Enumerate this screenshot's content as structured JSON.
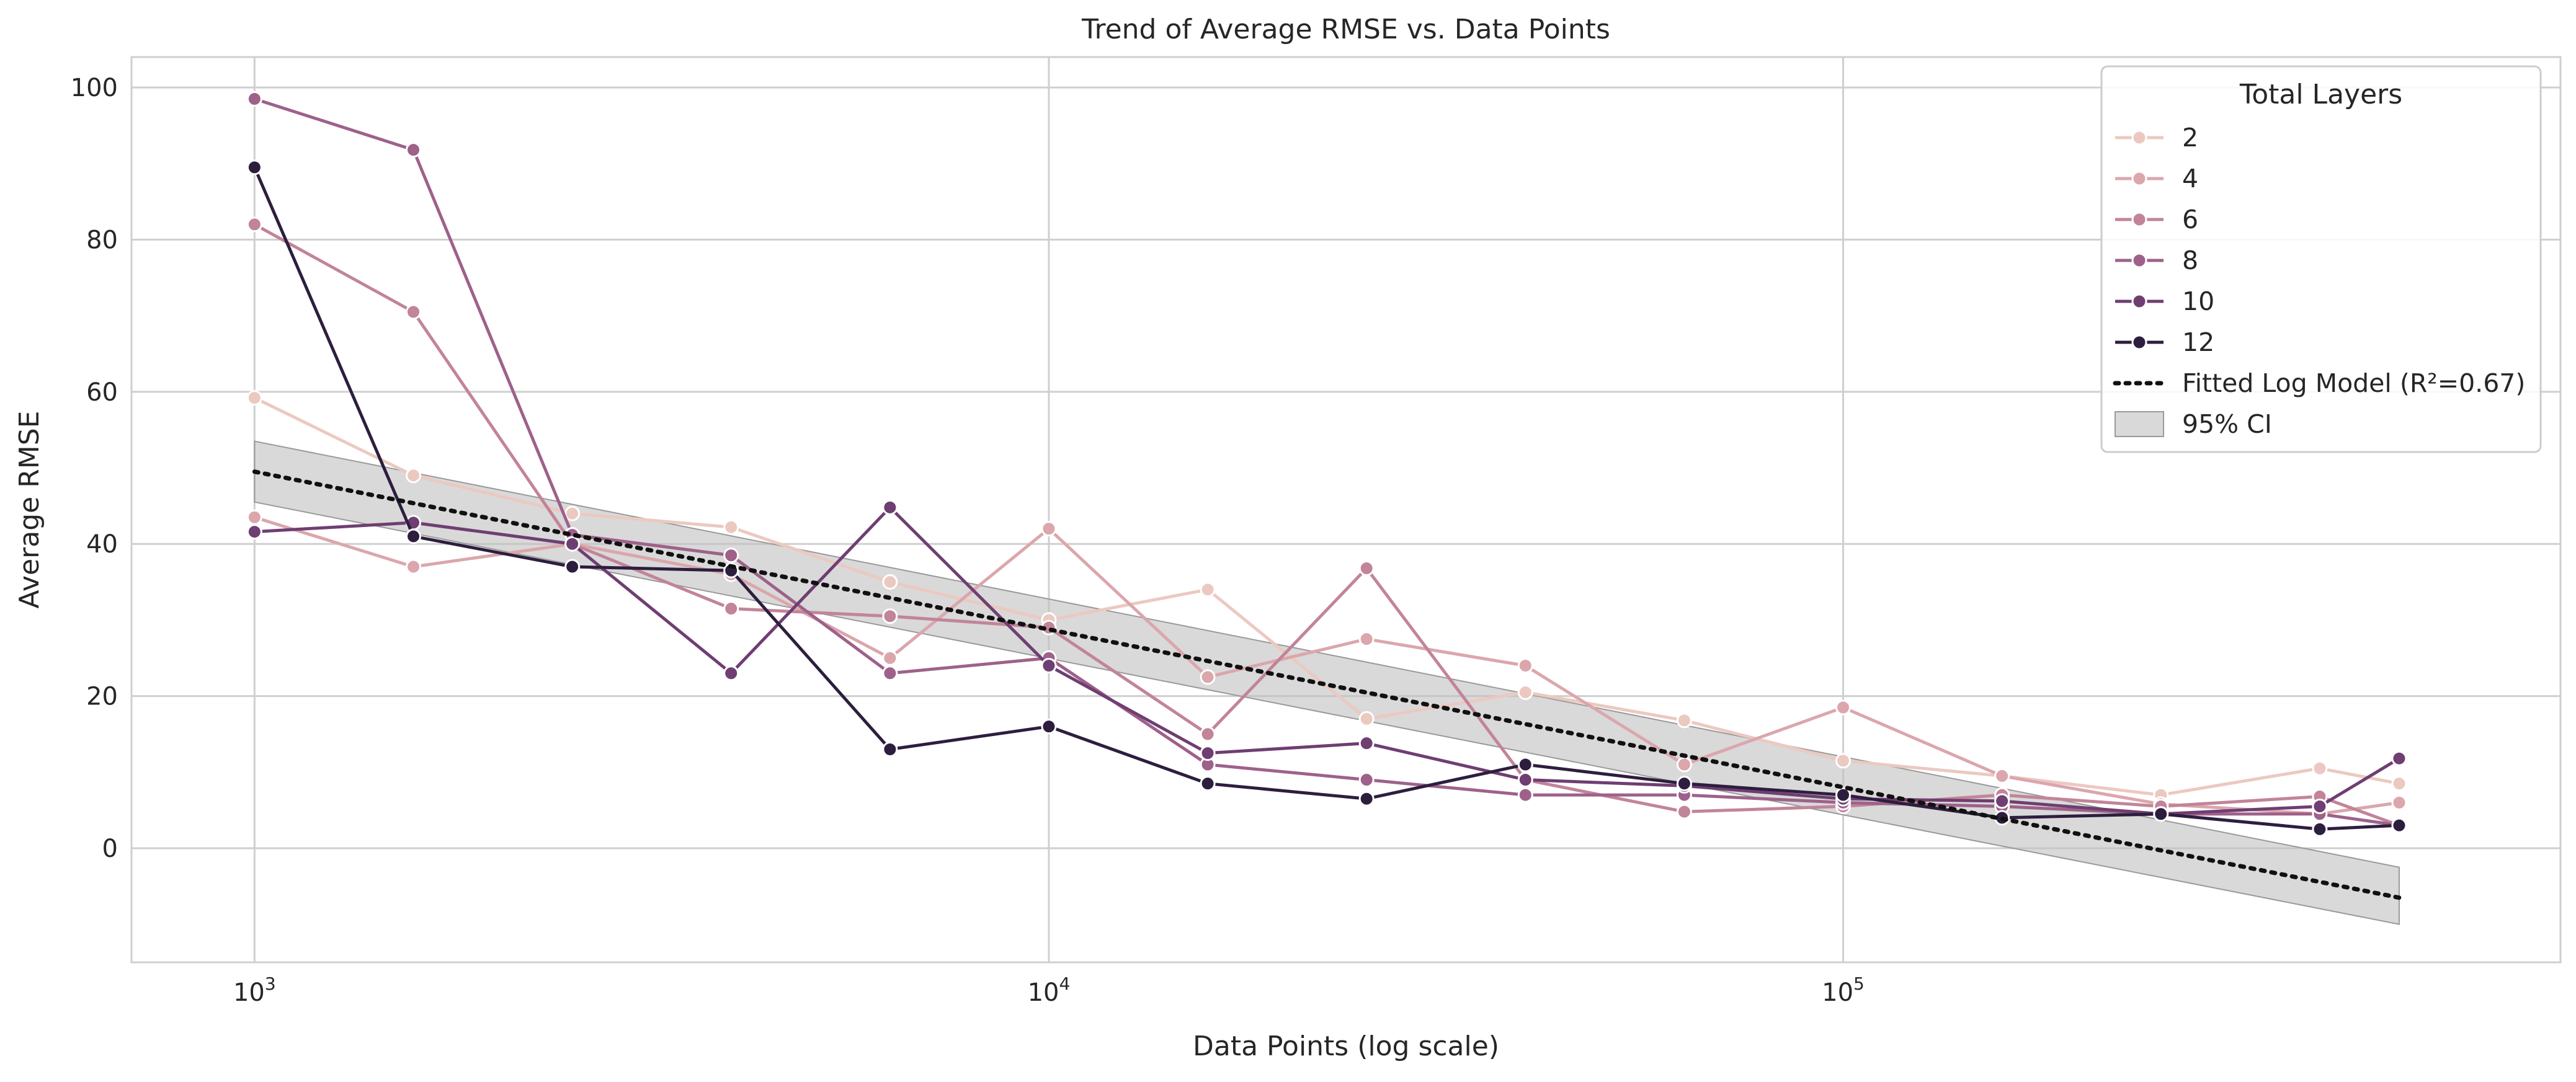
{
  "chart_data": {
    "type": "line",
    "title": "Trend of Average RMSE vs. Data Points",
    "xlabel": "Data Points (log scale)",
    "ylabel": "Average RMSE",
    "x_scale": "log",
    "xlim": [
      700,
      800000
    ],
    "ylim": [
      -15,
      104
    ],
    "x_ticks": [
      1000,
      10000,
      100000
    ],
    "x_tick_labels": [
      {
        "base": "10",
        "exp": "3"
      },
      {
        "base": "10",
        "exp": "4"
      },
      {
        "base": "10",
        "exp": "5"
      }
    ],
    "y_ticks": [
      0,
      20,
      40,
      60,
      80,
      100
    ],
    "y_tick_labels": [
      "0",
      "20",
      "40",
      "60",
      "80",
      "100"
    ],
    "grid": true,
    "legend": {
      "title": "Total Layers",
      "placement": "top-right"
    },
    "x": [
      1000,
      1585,
      2512,
      3981,
      6310,
      10000,
      15849,
      25119,
      39811,
      63096,
      100000,
      158489,
      251189,
      398107,
      501187
    ],
    "series": [
      {
        "name": "2",
        "color": "#ebc9c1",
        "values": [
          59.2,
          49,
          44,
          42.2,
          35,
          30,
          34,
          17,
          20.5,
          16.8,
          11.5,
          9.5,
          7,
          10.5,
          8.5
        ]
      },
      {
        "name": "4",
        "color": "#dba6ac",
        "values": [
          43.5,
          37,
          40,
          36,
          25,
          42,
          22.5,
          27.5,
          24,
          11,
          18.5,
          9.5,
          5.8,
          4.5,
          6
        ]
      },
      {
        "name": "6",
        "color": "#c28498",
        "values": [
          82,
          70.5,
          40,
          31.5,
          30.5,
          29,
          15,
          36.8,
          9,
          4.8,
          5.5,
          7,
          5.5,
          6.8,
          3
        ]
      },
      {
        "name": "8",
        "color": "#9e6189",
        "values": [
          98.5,
          91.8,
          41.2,
          38.5,
          23,
          25,
          11,
          9,
          7,
          7,
          6,
          5.5,
          4.5,
          4.5,
          3
        ]
      },
      {
        "name": "10",
        "color": "#6f3e72",
        "values": [
          41.6,
          42.8,
          40,
          23,
          44.8,
          24,
          12.5,
          13.8,
          9,
          8.2,
          6.5,
          6.2,
          4.5,
          5.5,
          11.8
        ]
      },
      {
        "name": "12",
        "color": "#2d1e3e",
        "values": [
          89.5,
          41,
          37,
          36.5,
          13,
          16,
          8.5,
          6.5,
          11,
          8.5,
          7,
          4,
          4.5,
          2.5,
          3
        ]
      }
    ],
    "fit": {
      "name": "Fitted Log Model (R²=0.67)",
      "color": "#111111",
      "x": [
        1000,
        501187
      ],
      "values": [
        49.5,
        -6.5
      ]
    },
    "ci": {
      "name": "95% CI",
      "color": "#bfbfbf",
      "x": [
        1000,
        501187
      ],
      "upper": [
        53.5,
        -2.5
      ],
      "lower": [
        45.5,
        -10
      ]
    }
  }
}
